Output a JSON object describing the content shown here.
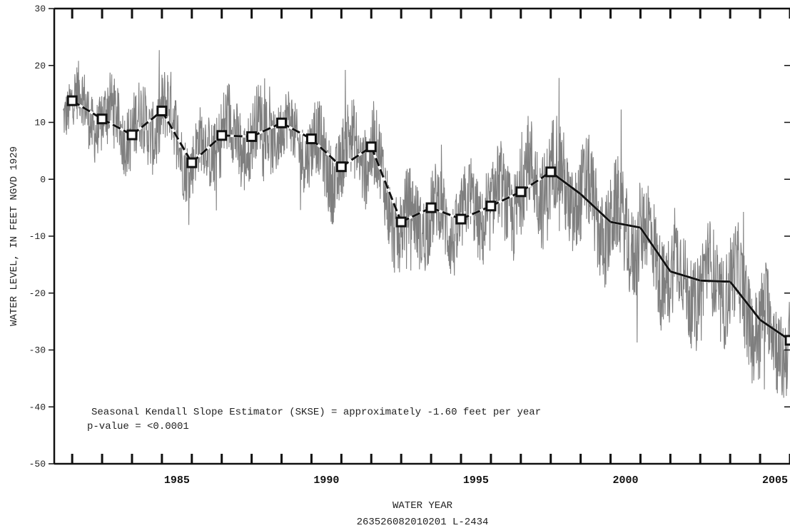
{
  "chart_data": {
    "type": "line",
    "title": "",
    "xlabel": "WATER YEAR",
    "subtitle": "263526082010201  L-2434",
    "ylabel": "WATER LEVEL, IN FEET NGVD 1929",
    "xlim": [
      1981.4,
      2006.0
    ],
    "ylim": [
      -50,
      30
    ],
    "x_ticks": [
      1985,
      1990,
      1995,
      2000,
      2005
    ],
    "y_ticks": [
      30,
      20,
      10,
      0,
      -10,
      -20,
      -30,
      -40,
      -50
    ],
    "x_tick_labels": [
      "1985",
      "1990",
      "1995",
      "2000",
      "2005"
    ],
    "y_tick_labels": [
      "30",
      "20",
      "10",
      "0",
      "-10",
      "-20",
      "-30",
      "-40",
      "-50"
    ],
    "grid": false,
    "annotations": [
      "Seasonal Kendall Slope Estimator (SKSE)  = approximately -1.60 feet per year",
      "p-value = <0.0001"
    ],
    "series": [
      {
        "color": "#7f7f7f",
        "style": "daily-trace",
        "x": [
          1981.7,
          1982.0,
          1982.5,
          1983.0,
          1983.5,
          1984.0,
          1984.5,
          1985.0,
          1985.5,
          1986.0,
          1986.5,
          1987.0,
          1987.5,
          1988.0,
          1988.5,
          1989.0,
          1989.5,
          1990.0,
          1990.5,
          1991.0,
          1991.5,
          1992.0,
          1992.5,
          1993.0,
          1993.5,
          1994.0,
          1994.5,
          1995.0,
          1995.5,
          1996.0,
          1996.5,
          1997.0,
          1997.5,
          1998.0,
          1998.5,
          1999.0,
          1999.5,
          2000.0,
          2000.5,
          2001.0,
          2001.5,
          2002.0,
          2002.5,
          2003.0,
          2003.5,
          2004.0,
          2004.5,
          2005.0,
          2005.5,
          2006.0
        ],
        "y": [
          13,
          14,
          12,
          10,
          11,
          8,
          9,
          12,
          8,
          2,
          6,
          8,
          7,
          7,
          9,
          9,
          7,
          6,
          2,
          3,
          6,
          5,
          -3,
          -9,
          -7,
          -6,
          -8,
          -7,
          -6,
          -5,
          -4,
          -2,
          0,
          1,
          -2,
          -3,
          -6,
          -8,
          -9,
          -10,
          -13,
          -17,
          -18,
          -19,
          -18,
          -18,
          -22,
          -25,
          -28,
          -28
        ],
        "spread": [
          6,
          7,
          8,
          8,
          8,
          9,
          9,
          10,
          9,
          8,
          9,
          10,
          10,
          9,
          9,
          8,
          8,
          9,
          10,
          10,
          10,
          10,
          10,
          10,
          10,
          10,
          10,
          10,
          10,
          10,
          11,
          12,
          12,
          13,
          12,
          12,
          12,
          12,
          12,
          12,
          12,
          12,
          11,
          11,
          12,
          12,
          12,
          12,
          12,
          11
        ]
      },
      {
        "color": "#111111",
        "style": "annual-median",
        "markers_until": 1998,
        "x": [
          1982,
          1983,
          1984,
          1985,
          1986,
          1987,
          1988,
          1989,
          1990,
          1991,
          1992,
          1993,
          1994,
          1995,
          1996,
          1997,
          1998,
          1999,
          2000,
          2001,
          2002,
          2003,
          2004,
          2005,
          2006
        ],
        "y": [
          13.8,
          10.6,
          7.8,
          12.0,
          2.9,
          7.7,
          7.5,
          9.9,
          7.1,
          2.2,
          5.7,
          -7.5,
          -5.0,
          -7.0,
          -4.7,
          -2.2,
          1.3,
          -2.6,
          -7.5,
          -8.5,
          -16.2,
          -17.8,
          -18.0,
          -24.7,
          -28.3
        ]
      }
    ]
  }
}
